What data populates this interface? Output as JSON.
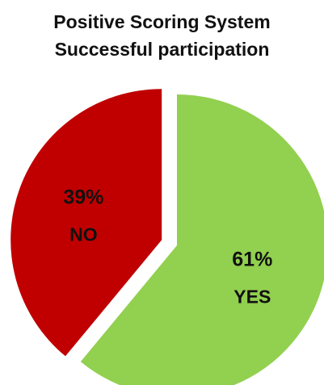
{
  "chart_data": {
    "type": "pie",
    "title": [
      "Positive Scoring System",
      "Successful participation"
    ],
    "slices": [
      {
        "label": "YES",
        "value": 61,
        "value_label": "61%",
        "color": "#92d050",
        "exploded": false
      },
      {
        "label": "NO",
        "value": 39,
        "value_label": "39%",
        "color": "#c00000",
        "exploded": true
      }
    ],
    "legend": "none"
  }
}
